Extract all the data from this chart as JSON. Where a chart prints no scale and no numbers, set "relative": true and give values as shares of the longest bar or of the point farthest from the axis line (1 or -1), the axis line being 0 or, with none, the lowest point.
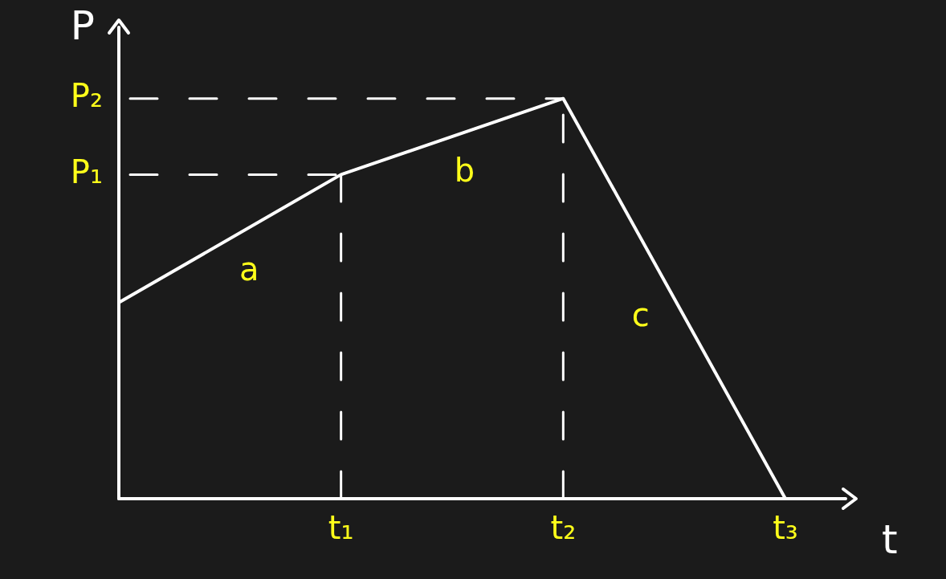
{
  "chart_data": {
    "type": "line",
    "relative": true,
    "xlabel": "t",
    "ylabel": "P",
    "color": "#ffffff",
    "tick_labels": "x",
    "marker": "none",
    "categories": [
      null,
      "t₁",
      "t₂",
      "t₃"
    ],
    "values": [
      0.49,
      0.81,
      1,
      0
    ],
    "ref_lines": [
      {
        "axis": "y",
        "value": 0.81,
        "label": "P₁",
        "line_style": "dashed"
      },
      {
        "axis": "y",
        "value": 1,
        "label": "P₂",
        "line_style": "dashed"
      },
      {
        "axis": "x",
        "value": "t₁",
        "line_style": "dashed"
      },
      {
        "axis": "x",
        "value": "t₂",
        "line_style": "dashed"
      }
    ],
    "annotations": [
      "a",
      "b",
      "c"
    ]
  }
}
